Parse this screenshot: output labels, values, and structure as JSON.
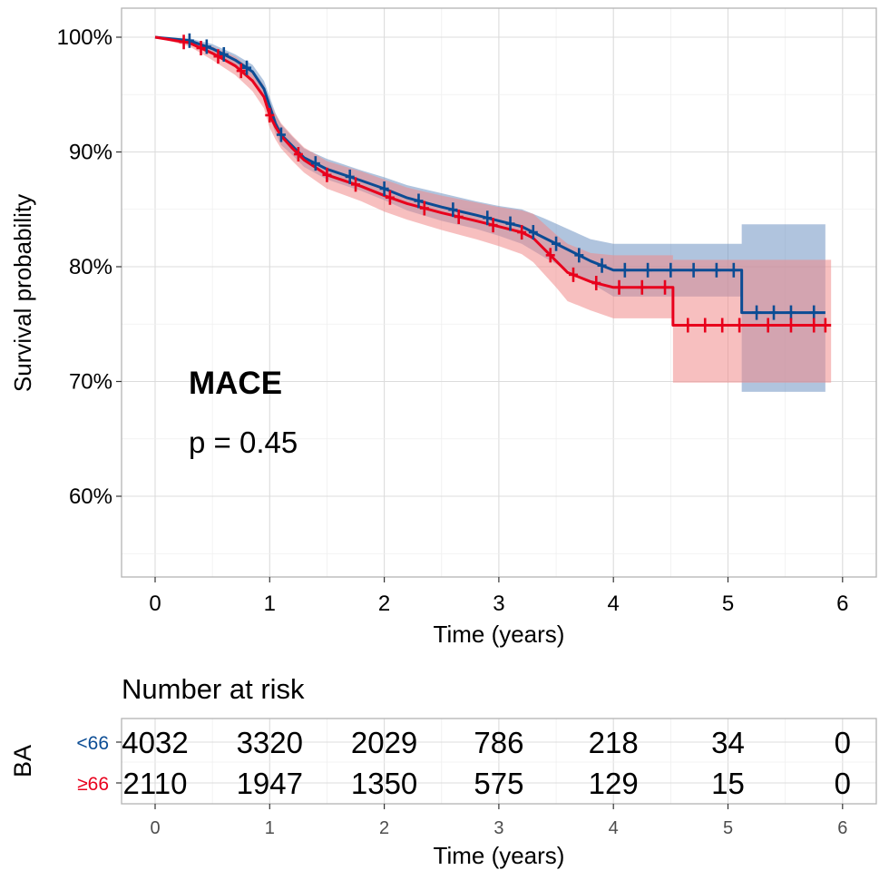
{
  "chart_data": {
    "type": "line",
    "subtype": "kaplan-meier",
    "ylabel": "Survival probability",
    "xlabel": "Time (years)",
    "xlim": [
      0,
      6
    ],
    "ylim": [
      0.55,
      1.0
    ],
    "x_ticks": [
      "0",
      "1",
      "2",
      "3",
      "4",
      "5",
      "6"
    ],
    "y_ticks": [
      {
        "value": 0.6,
        "label": "60%"
      },
      {
        "value": 0.7,
        "label": "70%"
      },
      {
        "value": 0.8,
        "label": "80%"
      },
      {
        "value": 0.9,
        "label": "90%"
      },
      {
        "value": 1.0,
        "label": "100%"
      }
    ],
    "grid": true,
    "annotations": {
      "title": "MACE",
      "pvalue": "p = 0.45"
    },
    "series": [
      {
        "name": "<66",
        "color": "#0b4c94",
        "band_color": "#6f94c2",
        "points": [
          [
            0,
            1.0
          ],
          [
            0.3,
            0.997
          ],
          [
            0.5,
            0.99
          ],
          [
            0.7,
            0.98
          ],
          [
            0.85,
            0.97
          ],
          [
            0.95,
            0.955
          ],
          [
            1.0,
            0.94
          ],
          [
            1.05,
            0.925
          ],
          [
            1.1,
            0.915
          ],
          [
            1.2,
            0.905
          ],
          [
            1.3,
            0.895
          ],
          [
            1.5,
            0.885
          ],
          [
            1.8,
            0.875
          ],
          [
            2.0,
            0.868
          ],
          [
            2.2,
            0.86
          ],
          [
            2.5,
            0.852
          ],
          [
            2.8,
            0.845
          ],
          [
            3.0,
            0.84
          ],
          [
            3.2,
            0.835
          ],
          [
            3.4,
            0.825
          ],
          [
            3.6,
            0.815
          ],
          [
            3.8,
            0.805
          ],
          [
            4.0,
            0.797
          ],
          [
            4.5,
            0.797
          ],
          [
            5.0,
            0.797
          ],
          [
            5.12,
            0.797
          ],
          [
            5.12,
            0.76
          ],
          [
            5.85,
            0.76
          ]
        ],
        "upper": [
          [
            0,
            1.0
          ],
          [
            0.3,
            0.999
          ],
          [
            0.5,
            0.994
          ],
          [
            0.7,
            0.985
          ],
          [
            0.85,
            0.976
          ],
          [
            0.95,
            0.962
          ],
          [
            1.0,
            0.948
          ],
          [
            1.05,
            0.934
          ],
          [
            1.1,
            0.924
          ],
          [
            1.2,
            0.913
          ],
          [
            1.3,
            0.903
          ],
          [
            1.5,
            0.894
          ],
          [
            1.8,
            0.884
          ],
          [
            2.0,
            0.878
          ],
          [
            2.2,
            0.871
          ],
          [
            2.5,
            0.864
          ],
          [
            2.8,
            0.857
          ],
          [
            3.0,
            0.853
          ],
          [
            3.2,
            0.85
          ],
          [
            3.4,
            0.842
          ],
          [
            3.6,
            0.833
          ],
          [
            3.8,
            0.824
          ],
          [
            4.0,
            0.82
          ],
          [
            4.5,
            0.82
          ],
          [
            5.0,
            0.82
          ],
          [
            5.12,
            0.82
          ],
          [
            5.12,
            0.837
          ],
          [
            5.85,
            0.837
          ]
        ],
        "lower": [
          [
            0,
            1.0
          ],
          [
            0.3,
            0.995
          ],
          [
            0.5,
            0.986
          ],
          [
            0.7,
            0.975
          ],
          [
            0.85,
            0.964
          ],
          [
            0.95,
            0.948
          ],
          [
            1.0,
            0.932
          ],
          [
            1.05,
            0.916
          ],
          [
            1.1,
            0.906
          ],
          [
            1.2,
            0.897
          ],
          [
            1.3,
            0.887
          ],
          [
            1.5,
            0.876
          ],
          [
            1.8,
            0.866
          ],
          [
            2.0,
            0.858
          ],
          [
            2.2,
            0.849
          ],
          [
            2.5,
            0.84
          ],
          [
            2.8,
            0.833
          ],
          [
            3.0,
            0.827
          ],
          [
            3.2,
            0.82
          ],
          [
            3.4,
            0.808
          ],
          [
            3.6,
            0.797
          ],
          [
            3.8,
            0.786
          ],
          [
            4.0,
            0.774
          ],
          [
            4.5,
            0.774
          ],
          [
            5.0,
            0.774
          ],
          [
            5.12,
            0.774
          ],
          [
            5.12,
            0.691
          ],
          [
            5.85,
            0.691
          ]
        ],
        "censor_x": [
          0.3,
          0.45,
          0.6,
          0.8,
          1.1,
          1.4,
          1.7,
          2.0,
          2.3,
          2.6,
          2.9,
          3.1,
          3.3,
          3.5,
          3.7,
          3.9,
          4.1,
          4.3,
          4.5,
          4.7,
          4.9,
          5.05,
          5.25,
          5.4,
          5.55,
          5.75
        ]
      },
      {
        "name": "≥66",
        "color": "#e8001c",
        "band_color": "#f08a8a",
        "points": [
          [
            0,
            1.0
          ],
          [
            0.3,
            0.995
          ],
          [
            0.5,
            0.986
          ],
          [
            0.7,
            0.975
          ],
          [
            0.85,
            0.962
          ],
          [
            0.95,
            0.948
          ],
          [
            1.0,
            0.932
          ],
          [
            1.05,
            0.922
          ],
          [
            1.1,
            0.914
          ],
          [
            1.2,
            0.903
          ],
          [
            1.3,
            0.893
          ],
          [
            1.5,
            0.88
          ],
          [
            1.8,
            0.87
          ],
          [
            2.0,
            0.862
          ],
          [
            2.2,
            0.855
          ],
          [
            2.5,
            0.847
          ],
          [
            2.8,
            0.84
          ],
          [
            3.0,
            0.835
          ],
          [
            3.2,
            0.83
          ],
          [
            3.3,
            0.825
          ],
          [
            3.4,
            0.815
          ],
          [
            3.5,
            0.805
          ],
          [
            3.6,
            0.795
          ],
          [
            3.8,
            0.787
          ],
          [
            4.0,
            0.782
          ],
          [
            4.5,
            0.782
          ],
          [
            4.52,
            0.782
          ],
          [
            4.52,
            0.749
          ],
          [
            5.9,
            0.749
          ]
        ],
        "upper": [
          [
            0,
            1.0
          ],
          [
            0.3,
            0.998
          ],
          [
            0.5,
            0.992
          ],
          [
            0.7,
            0.983
          ],
          [
            0.85,
            0.971
          ],
          [
            0.95,
            0.958
          ],
          [
            1.0,
            0.943
          ],
          [
            1.05,
            0.933
          ],
          [
            1.1,
            0.925
          ],
          [
            1.2,
            0.914
          ],
          [
            1.3,
            0.904
          ],
          [
            1.5,
            0.892
          ],
          [
            1.8,
            0.883
          ],
          [
            2.0,
            0.876
          ],
          [
            2.2,
            0.869
          ],
          [
            2.5,
            0.862
          ],
          [
            2.8,
            0.856
          ],
          [
            3.0,
            0.852
          ],
          [
            3.2,
            0.849
          ],
          [
            3.3,
            0.846
          ],
          [
            3.4,
            0.837
          ],
          [
            3.5,
            0.828
          ],
          [
            3.6,
            0.82
          ],
          [
            3.8,
            0.812
          ],
          [
            4.0,
            0.81
          ],
          [
            4.5,
            0.81
          ],
          [
            4.52,
            0.81
          ],
          [
            4.52,
            0.806
          ],
          [
            5.9,
            0.806
          ]
        ],
        "lower": [
          [
            0,
            1.0
          ],
          [
            0.3,
            0.992
          ],
          [
            0.5,
            0.98
          ],
          [
            0.7,
            0.967
          ],
          [
            0.85,
            0.953
          ],
          [
            0.95,
            0.938
          ],
          [
            1.0,
            0.921
          ],
          [
            1.05,
            0.911
          ],
          [
            1.1,
            0.903
          ],
          [
            1.2,
            0.892
          ],
          [
            1.3,
            0.882
          ],
          [
            1.5,
            0.868
          ],
          [
            1.8,
            0.857
          ],
          [
            2.0,
            0.848
          ],
          [
            2.2,
            0.841
          ],
          [
            2.5,
            0.832
          ],
          [
            2.8,
            0.824
          ],
          [
            3.0,
            0.818
          ],
          [
            3.2,
            0.811
          ],
          [
            3.3,
            0.804
          ],
          [
            3.4,
            0.793
          ],
          [
            3.5,
            0.782
          ],
          [
            3.6,
            0.77
          ],
          [
            3.8,
            0.762
          ],
          [
            4.0,
            0.755
          ],
          [
            4.5,
            0.755
          ],
          [
            4.52,
            0.755
          ],
          [
            4.52,
            0.699
          ],
          [
            5.9,
            0.699
          ]
        ],
        "censor_x": [
          0.25,
          0.4,
          0.55,
          0.75,
          1.0,
          1.25,
          1.5,
          1.75,
          2.05,
          2.35,
          2.65,
          2.95,
          3.2,
          3.45,
          3.65,
          3.85,
          4.05,
          4.25,
          4.45,
          4.65,
          4.8,
          4.95,
          5.1,
          5.35,
          5.55,
          5.75,
          5.85
        ]
      }
    ],
    "risk_table": {
      "title": "Number at risk",
      "strata_label": "BA",
      "xlabel": "Time (years)",
      "x_ticks": [
        "0",
        "1",
        "2",
        "3",
        "4",
        "5",
        "6"
      ],
      "rows": [
        {
          "name": "<66",
          "color": "#0b4c94",
          "values": [
            "4032",
            "3320",
            "2029",
            "786",
            "218",
            "34",
            "0"
          ]
        },
        {
          "name": "≥66",
          "color": "#e8001c",
          "values": [
            "2110",
            "1947",
            "1350",
            "575",
            "129",
            "15",
            "0"
          ]
        }
      ]
    }
  }
}
